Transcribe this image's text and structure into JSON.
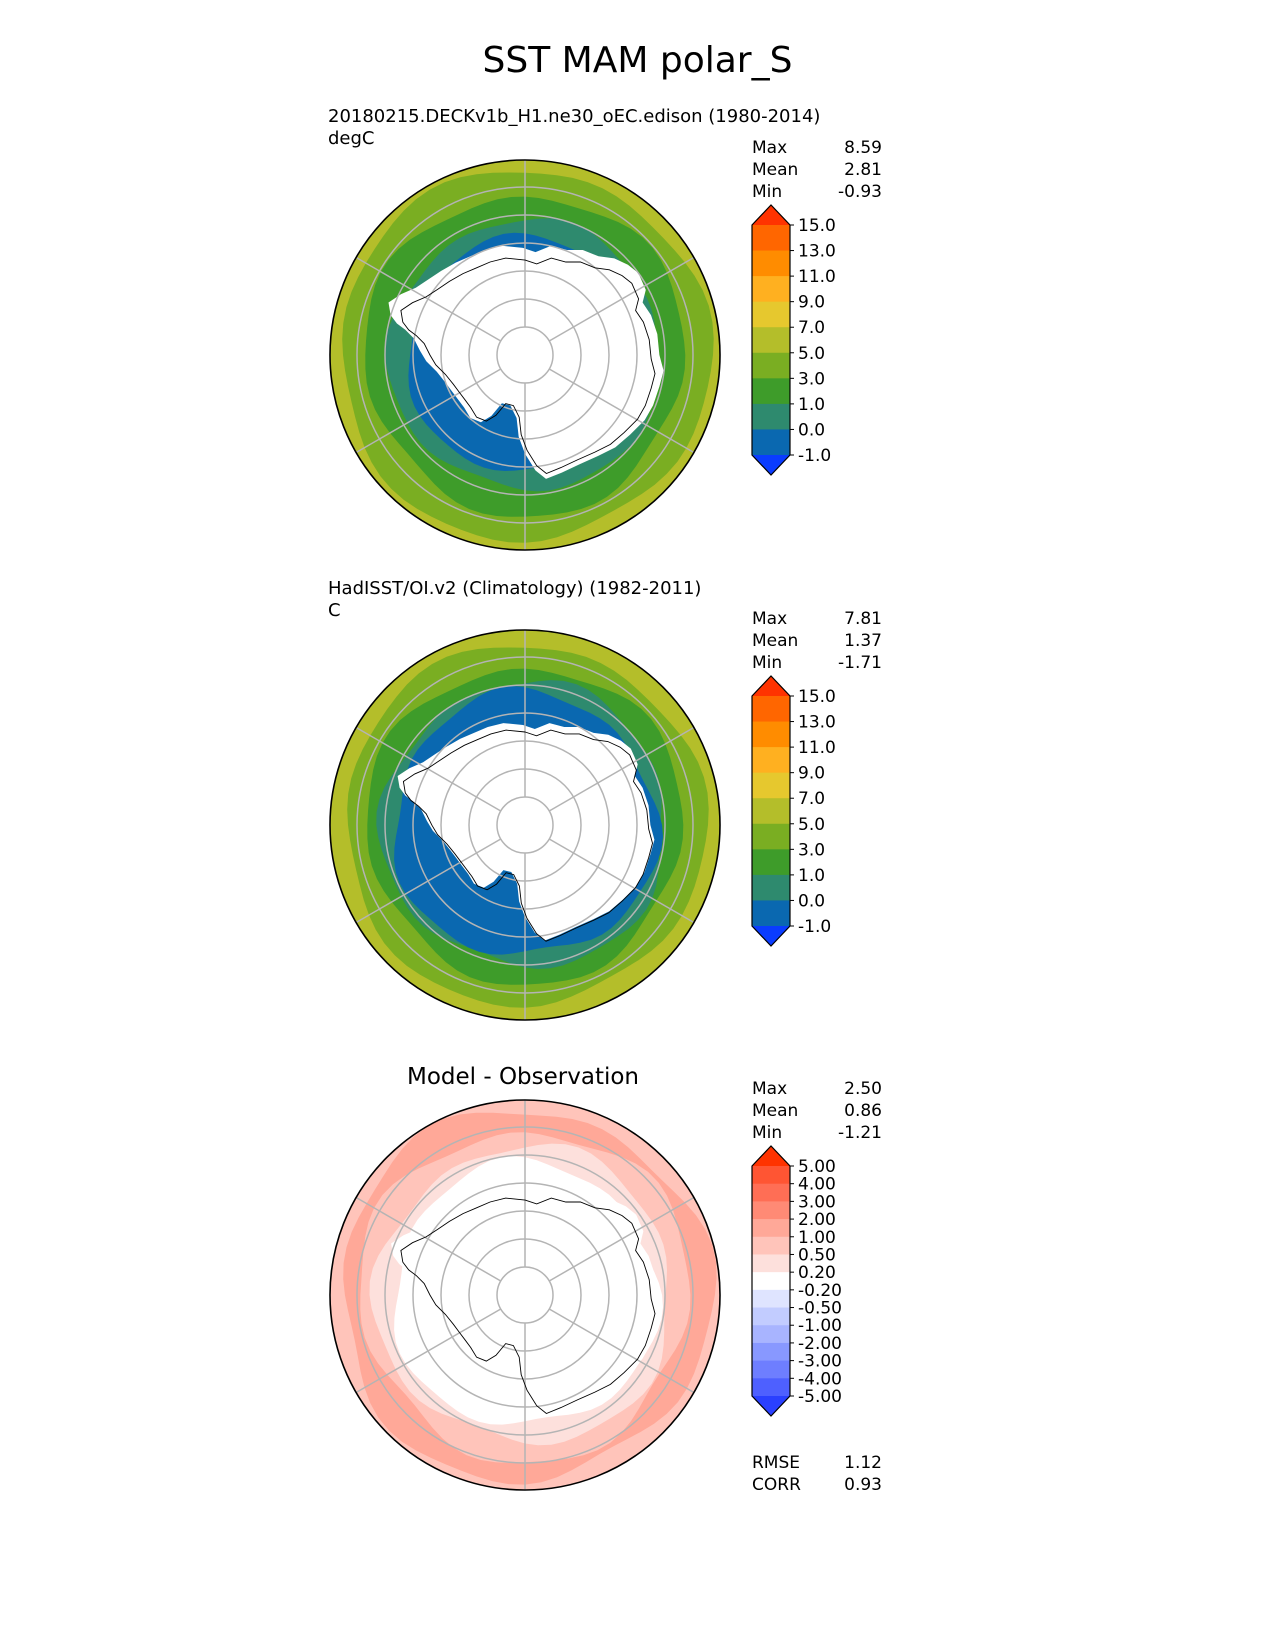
{
  "title": "SST MAM polar_S",
  "panels": [
    {
      "id": "test",
      "title": "20180215.DECKv1b_H1.ne30_oEC.edison (1980-2014)",
      "units": "degC",
      "stats": [
        {
          "label": "Max",
          "value": "8.59"
        },
        {
          "label": "Mean",
          "value": "2.81"
        },
        {
          "label": "Min",
          "value": "-0.93"
        }
      ]
    },
    {
      "id": "reference",
      "title": "HadISST/OI.v2 (Climatology) (1982-2011)",
      "units": "C",
      "stats": [
        {
          "label": "Max",
          "value": "7.81"
        },
        {
          "label": "Mean",
          "value": "1.37"
        },
        {
          "label": "Min",
          "value": "-1.71"
        }
      ]
    },
    {
      "id": "difference",
      "title": "Model - Observation",
      "units": "",
      "stats": [
        {
          "label": "Max",
          "value": "2.50"
        },
        {
          "label": "Mean",
          "value": "0.86"
        },
        {
          "label": "Min",
          "value": "-1.21"
        }
      ],
      "extra_stats": [
        {
          "label": "RMSE",
          "value": "1.12"
        },
        {
          "label": "CORR",
          "value": "0.93"
        }
      ]
    }
  ],
  "colorbars": {
    "sst": {
      "ticks": [
        "15.0",
        "13.0",
        "11.0",
        "9.0",
        "7.0",
        "5.0",
        "3.0",
        "1.0",
        "0.0",
        "-1.0"
      ],
      "colors": [
        "#ff3300",
        "#ff6600",
        "#ff8c00",
        "#ffb020",
        "#e6c82e",
        "#b4be2a",
        "#7aae22",
        "#3e9c2a",
        "#2e8a6e",
        "#0a68b0",
        "#0a3cff"
      ]
    },
    "diff": {
      "ticks": [
        "5.00",
        "4.00",
        "3.00",
        "2.00",
        "1.00",
        "0.50",
        "0.20",
        "-0.20",
        "-0.50",
        "-1.00",
        "-2.00",
        "-3.00",
        "-4.00",
        "-5.00"
      ],
      "colors": [
        "#ff3300",
        "#ff5533",
        "#ff6e55",
        "#ff8a75",
        "#ffa898",
        "#ffc4ba",
        "#fde0dc",
        "#ffffff",
        "#dfe4ff",
        "#c2ccff",
        "#a8b4ff",
        "#8898ff",
        "#6e7eff",
        "#4e60ff",
        "#2a40ff"
      ]
    }
  },
  "map": {
    "projection": "south polar stereographic",
    "field_colors": {
      "land": "#ffffff",
      "grid": "#b4b4b4",
      "coast": "#000000"
    }
  }
}
